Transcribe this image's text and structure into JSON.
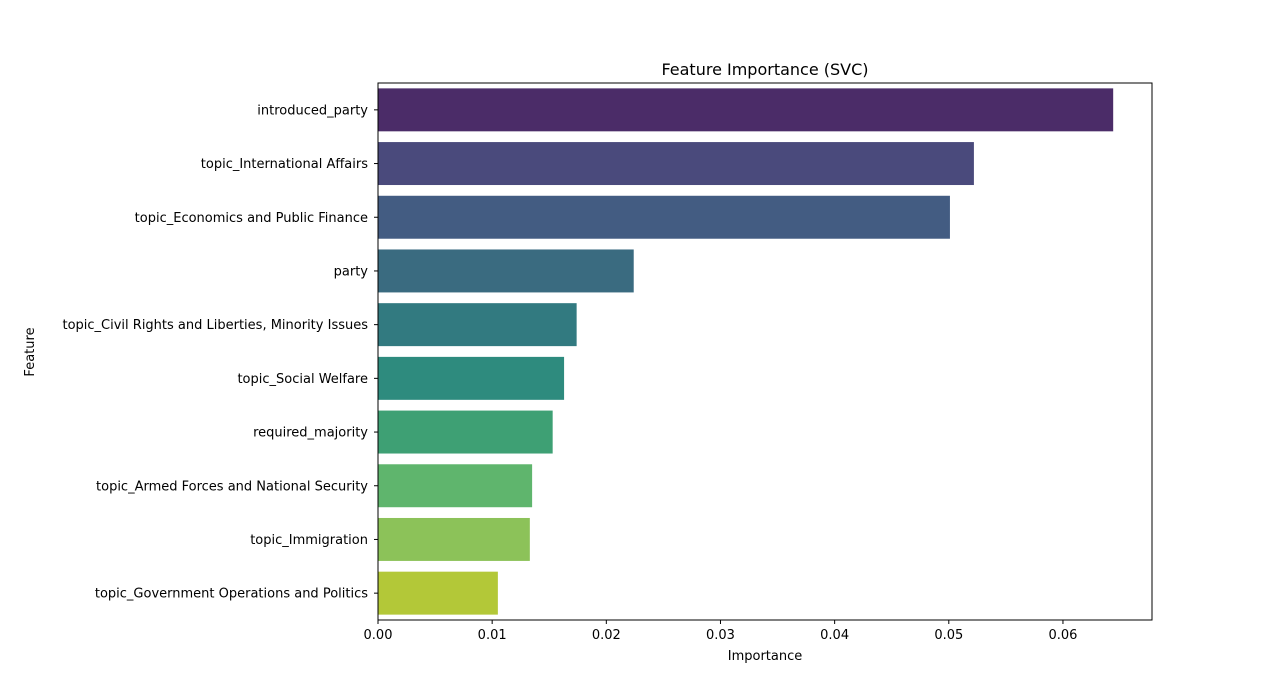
{
  "chart_data": {
    "type": "bar",
    "orientation": "horizontal",
    "title": "Feature Importance (SVC)",
    "xlabel": "Importance",
    "ylabel": "Feature",
    "xlim": [
      0,
      0.0678
    ],
    "xticks": [
      0.0,
      0.01,
      0.02,
      0.03,
      0.04,
      0.05,
      0.06
    ],
    "xtick_labels": [
      "0.00",
      "0.01",
      "0.02",
      "0.03",
      "0.04",
      "0.05",
      "0.06"
    ],
    "grid": false,
    "categories": [
      "introduced_party",
      "topic_International Affairs",
      "topic_Economics and Public Finance",
      "party",
      "topic_Civil Rights and Liberties, Minority Issues",
      "topic_Social Welfare",
      "required_majority",
      "topic_Armed Forces and National Security",
      "topic_Immigration",
      "topic_Government Operations and Politics"
    ],
    "values": [
      0.0644,
      0.0522,
      0.0501,
      0.0224,
      0.0174,
      0.0163,
      0.0153,
      0.0135,
      0.0133,
      0.0105
    ],
    "colors": [
      "#4b2c68",
      "#4a4a7c",
      "#435c82",
      "#3a6b80",
      "#327a80",
      "#2e8b7e",
      "#3ea074",
      "#5fb56d",
      "#8cc259",
      "#b3c838"
    ]
  }
}
